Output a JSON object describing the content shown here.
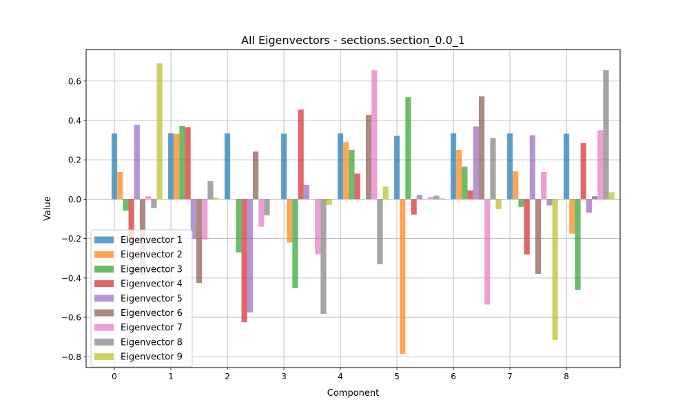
{
  "chart_data": {
    "type": "bar",
    "title": "All Eigenvectors - sections.section_0.0_1",
    "xlabel": "Component",
    "ylabel": "Value",
    "categories": [
      "0",
      "1",
      "2",
      "3",
      "4",
      "5",
      "6",
      "7",
      "8"
    ],
    "xlim": [
      -0.5,
      8.95
    ],
    "ylim": [
      -0.855,
      0.76
    ],
    "yticks": [
      "−0.8",
      "−0.6",
      "−0.4",
      "−0.2",
      "0.0",
      "0.2",
      "0.4",
      "0.6"
    ],
    "ytick_values": [
      -0.8,
      -0.6,
      -0.4,
      -0.2,
      0.0,
      0.2,
      0.4,
      0.6
    ],
    "grid": true,
    "legend_position": "lower-left",
    "series": [
      {
        "name": "Eigenvector 1",
        "color": "#1f77b4",
        "values": [
          0.335,
          0.335,
          0.335,
          0.333,
          0.335,
          0.322,
          0.335,
          0.335,
          0.333
        ]
      },
      {
        "name": "Eigenvector 2",
        "color": "#ff7f0e",
        "values": [
          0.138,
          0.332,
          0.0,
          -0.22,
          0.29,
          -0.785,
          0.25,
          0.142,
          -0.175
        ]
      },
      {
        "name": "Eigenvector 3",
        "color": "#2ca02c",
        "values": [
          -0.058,
          0.372,
          -0.27,
          -0.45,
          0.25,
          0.518,
          0.165,
          -0.04,
          -0.46
        ]
      },
      {
        "name": "Eigenvector 4",
        "color": "#d62728",
        "values": [
          -0.22,
          0.365,
          -0.625,
          0.455,
          0.13,
          -0.078,
          0.045,
          -0.28,
          0.285
        ]
      },
      {
        "name": "Eigenvector 5",
        "color": "#9467bd",
        "values": [
          0.378,
          -0.2,
          -0.575,
          0.072,
          0.0,
          0.022,
          0.37,
          0.325,
          -0.068
        ]
      },
      {
        "name": "Eigenvector 6",
        "color": "#8c564b",
        "values": [
          -0.385,
          -0.425,
          0.242,
          0.0,
          0.428,
          0.0,
          0.522,
          -0.38,
          0.015
        ]
      },
      {
        "name": "Eigenvector 7",
        "color": "#e377c2",
        "values": [
          0.015,
          -0.205,
          -0.14,
          -0.28,
          0.655,
          0.012,
          -0.535,
          0.138,
          0.35
        ]
      },
      {
        "name": "Eigenvector 8",
        "color": "#7f7f7f",
        "values": [
          -0.045,
          0.092,
          -0.082,
          -0.582,
          -0.33,
          0.018,
          0.31,
          -0.032,
          0.655
        ]
      },
      {
        "name": "Eigenvector 9",
        "color": "#bcbd22",
        "values": [
          0.69,
          0.008,
          0.0,
          -0.03,
          0.065,
          0.005,
          -0.05,
          -0.715,
          0.035
        ]
      }
    ]
  }
}
